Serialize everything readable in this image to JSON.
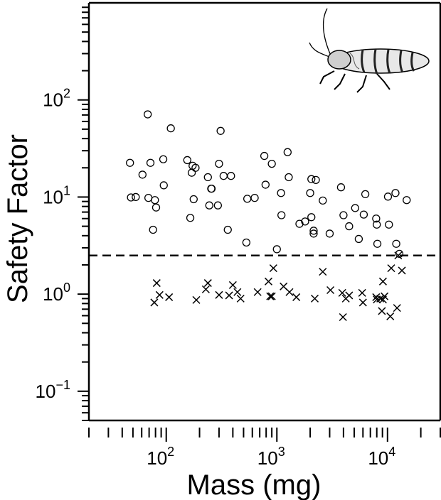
{
  "chart_data": {
    "type": "scatter",
    "title": "",
    "xlabel": "Mass (mg)",
    "ylabel": "Safety Factor",
    "x_scale": "log",
    "y_scale": "log",
    "xlim": [
      20,
      30000
    ],
    "ylim": [
      0.05,
      1000
    ],
    "x_ticks": [
      {
        "value": 100,
        "base": "10",
        "exp": "2"
      },
      {
        "value": 1000,
        "base": "10",
        "exp": "3"
      },
      {
        "value": 10000,
        "base": "10",
        "exp": "4"
      }
    ],
    "y_ticks": [
      {
        "value": 0.1,
        "base": "10",
        "exp": "−1"
      },
      {
        "value": 1,
        "base": "10",
        "exp": "0"
      },
      {
        "value": 10,
        "base": "10",
        "exp": "1"
      },
      {
        "value": 100,
        "base": "10",
        "exp": "2"
      }
    ],
    "reference_line": {
      "y": 2.5,
      "style": "dashed"
    },
    "grid": false,
    "series": [
      {
        "marker": "circle",
        "points": [
          [
            47,
            22.5
          ],
          [
            48,
            9.9
          ],
          [
            53,
            10.0
          ],
          [
            61,
            17.0
          ],
          [
            68,
            71
          ],
          [
            69,
            9.8
          ],
          [
            72,
            22.5
          ],
          [
            76,
            4.6
          ],
          [
            79,
            9.3
          ],
          [
            81,
            7.8
          ],
          [
            94,
            24.5
          ],
          [
            95,
            13.2
          ],
          [
            110,
            51
          ],
          [
            155,
            24.0
          ],
          [
            165,
            6.1
          ],
          [
            170,
            17.8
          ],
          [
            173,
            21.0
          ],
          [
            177,
            9.5
          ],
          [
            184,
            20.0
          ],
          [
            238,
            16.0
          ],
          [
            245,
            8.2
          ],
          [
            255,
            12.2
          ],
          [
            257,
            12.2
          ],
          [
            293,
            8.2
          ],
          [
            300,
            22.0
          ],
          [
            310,
            48
          ],
          [
            330,
            16.5
          ],
          [
            360,
            4.6
          ],
          [
            385,
            16.5
          ],
          [
            530,
            3.4
          ],
          [
            540,
            9.6
          ],
          [
            630,
            9.8
          ],
          [
            770,
            26.5
          ],
          [
            790,
            13.4
          ],
          [
            900,
            22.0
          ],
          [
            1000,
            2.9
          ],
          [
            1090,
            11.0
          ],
          [
            1100,
            6.5
          ],
          [
            1250,
            29
          ],
          [
            1280,
            16.0
          ],
          [
            1600,
            5.3
          ],
          [
            1800,
            5.6
          ],
          [
            2000,
            11.0
          ],
          [
            2050,
            15.3
          ],
          [
            2050,
            6.2
          ],
          [
            2150,
            4.2
          ],
          [
            2150,
            4.5
          ],
          [
            2250,
            15.0
          ],
          [
            2600,
            9.2
          ],
          [
            3000,
            4.2
          ],
          [
            3800,
            12.6
          ],
          [
            4000,
            6.5
          ],
          [
            4500,
            5.0
          ],
          [
            5100,
            7.7
          ],
          [
            5500,
            3.7
          ],
          [
            6100,
            6.6
          ],
          [
            6300,
            10.7
          ],
          [
            7900,
            6.0
          ],
          [
            8000,
            5.2
          ],
          [
            8100,
            3.3
          ],
          [
            10100,
            10.1
          ],
          [
            10300,
            5.2
          ],
          [
            11800,
            11.0
          ],
          [
            12000,
            3.3
          ],
          [
            12800,
            2.6
          ],
          [
            14900,
            9.3
          ]
        ]
      },
      {
        "marker": "cross",
        "points": [
          [
            78,
            0.82
          ],
          [
            82,
            1.3
          ],
          [
            87,
            0.98
          ],
          [
            106,
            0.93
          ],
          [
            187,
            0.87
          ],
          [
            228,
            1.12
          ],
          [
            238,
            1.3
          ],
          [
            300,
            0.98
          ],
          [
            370,
            0.97
          ],
          [
            400,
            1.24
          ],
          [
            440,
            1.05
          ],
          [
            470,
            0.9
          ],
          [
            670,
            1.05
          ],
          [
            840,
            1.35
          ],
          [
            870,
            0.95
          ],
          [
            900,
            0.95
          ],
          [
            930,
            1.85
          ],
          [
            1150,
            1.2
          ],
          [
            1300,
            1.05
          ],
          [
            1500,
            0.93
          ],
          [
            2200,
            0.9
          ],
          [
            2600,
            1.7
          ],
          [
            3050,
            1.1
          ],
          [
            3900,
            1.03
          ],
          [
            3960,
            0.58
          ],
          [
            4200,
            0.9
          ],
          [
            4500,
            0.97
          ],
          [
            5900,
            1.03
          ],
          [
            6000,
            0.82
          ],
          [
            7900,
            0.93
          ],
          [
            8000,
            0.88
          ],
          [
            8600,
            0.9
          ],
          [
            8900,
            0.67
          ],
          [
            9100,
            0.88
          ],
          [
            9100,
            1.35
          ],
          [
            9400,
            0.95
          ],
          [
            10600,
            0.59
          ],
          [
            10800,
            1.85
          ],
          [
            12200,
            0.72
          ],
          [
            12500,
            2.5
          ],
          [
            13500,
            1.75
          ]
        ]
      }
    ]
  }
}
